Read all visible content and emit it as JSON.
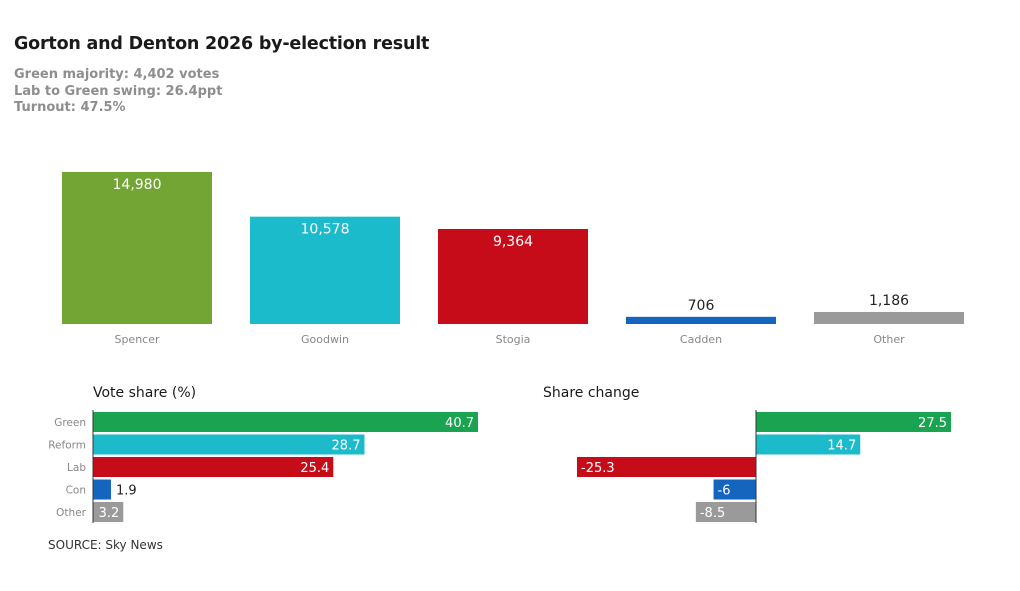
{
  "header": {
    "title": "Gorton and Denton 2026 by-election result",
    "subtitle_lines": [
      "Green majority: 4,402 votes",
      "Lab to Green swing: 26.4ppt",
      "Turnout: 47.5%"
    ]
  },
  "source": "SOURCE: Sky News",
  "colors": {
    "green_candidate": "#72a533",
    "green_party": "#1aa350",
    "reform": "#1bbbcb",
    "lab": "#c60b19",
    "con": "#1565bf",
    "other": "#9a9a9a",
    "label_dark": "#222222",
    "axis_label": "#888888"
  },
  "chart_data": [
    {
      "type": "bar",
      "title": "",
      "categories": [
        "Spencer",
        "Goodwin",
        "Stogia",
        "Cadden",
        "Other"
      ],
      "values": [
        14980,
        10578,
        9364,
        706,
        1186
      ],
      "value_labels": [
        "14,980",
        "10,578",
        "9,364",
        "706",
        "1,186"
      ],
      "colors": [
        "#72a533",
        "#1bbbcb",
        "#c60b19",
        "#1565bf",
        "#9a9a9a"
      ],
      "ylim": [
        0,
        14980
      ],
      "grid": false
    },
    {
      "type": "bar",
      "orientation": "horizontal",
      "title": "Vote share (%)",
      "categories": [
        "Green",
        "Reform",
        "Lab",
        "Con",
        "Other"
      ],
      "values": [
        40.7,
        28.7,
        25.4,
        1.9,
        3.2
      ],
      "colors": [
        "#1aa350",
        "#1bbbcb",
        "#c60b19",
        "#1565bf",
        "#9a9a9a"
      ],
      "xlim": [
        0,
        40.7
      ],
      "grid": false
    },
    {
      "type": "bar",
      "orientation": "horizontal",
      "title": "Share change",
      "categories": [
        "Green",
        "Reform",
        "Lab",
        "Con",
        "Other"
      ],
      "values": [
        27.5,
        14.7,
        -25.3,
        -6,
        -8.5
      ],
      "colors": [
        "#1aa350",
        "#1bbbcb",
        "#c60b19",
        "#1565bf",
        "#9a9a9a"
      ],
      "xlim": [
        -25.3,
        27.5
      ],
      "grid": false
    }
  ]
}
